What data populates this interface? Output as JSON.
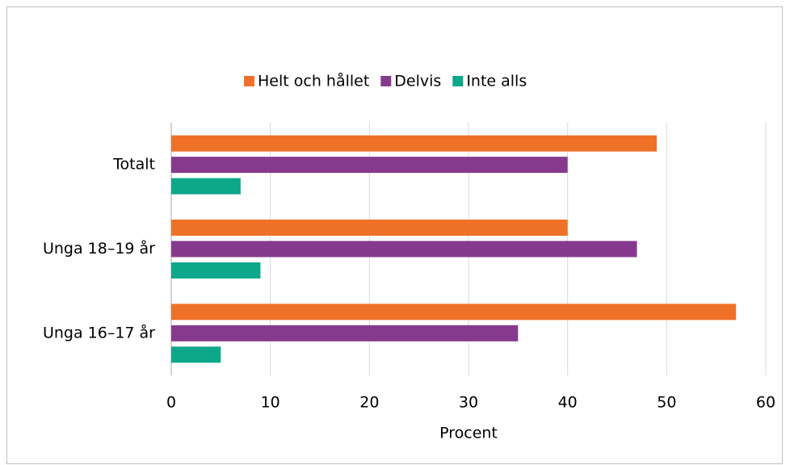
{
  "chart_data": {
    "type": "bar",
    "orientation": "horizontal",
    "categories": [
      "Totalt",
      "Unga 18–19 år",
      "Unga 16–17 år"
    ],
    "series": [
      {
        "name": "Helt och hållet",
        "color": "#ef7127",
        "values": [
          49,
          40,
          57
        ]
      },
      {
        "name": "Delvis",
        "color": "#853a8e",
        "values": [
          40,
          47,
          35
        ]
      },
      {
        "name": "Inte alls",
        "color": "#0da78a",
        "values": [
          7,
          9,
          5
        ]
      }
    ],
    "xlabel": "Procent",
    "xlim": [
      0,
      60
    ],
    "xticks": [
      0,
      10,
      20,
      30,
      40,
      50,
      60
    ],
    "grid": true,
    "legend": "top"
  }
}
